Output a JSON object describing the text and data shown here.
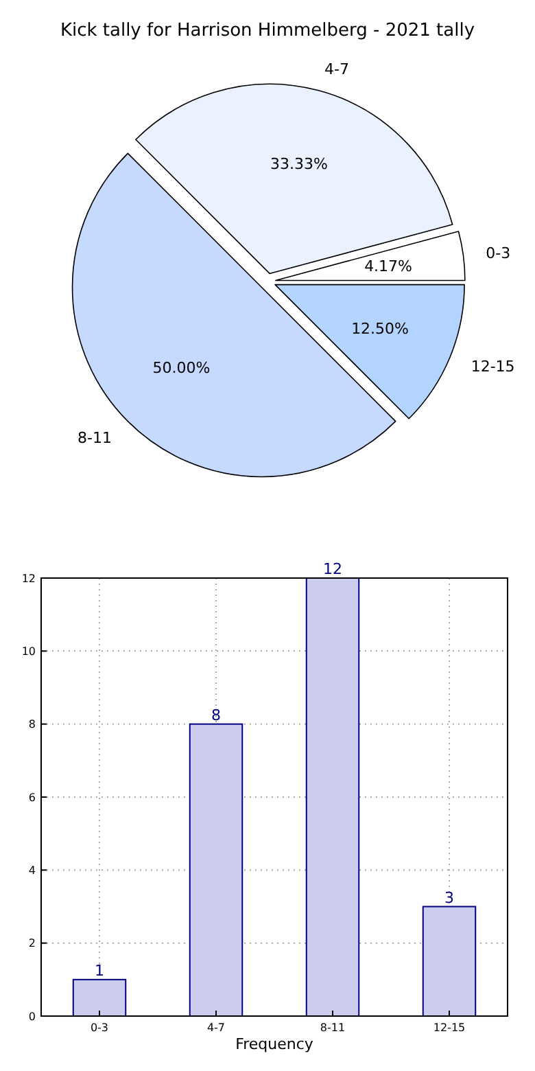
{
  "chart_data": [
    {
      "type": "pie",
      "title": "Kick tally for Harrison Himmelberg - 2021 tally",
      "categories": [
        "0-3",
        "4-7",
        "8-11",
        "12-15"
      ],
      "values": [
        4.17,
        33.33,
        50.0,
        12.5
      ],
      "value_labels": [
        "4.17%",
        "33.33%",
        "50.00%",
        "12.50%"
      ],
      "colors": [
        "#ffffff",
        "#eaf2ff",
        "#c6d9ff",
        "#b3d4ff"
      ]
    },
    {
      "type": "bar",
      "xlabel": "Frequency",
      "categories": [
        "0-3",
        "4-7",
        "8-11",
        "12-15"
      ],
      "values": [
        1,
        8,
        12,
        3
      ],
      "color": "#ccccee",
      "ylim": [
        0,
        12
      ],
      "yticks": [
        0,
        2,
        4,
        6,
        8,
        10,
        12
      ],
      "grid": true,
      "data_labels": true
    }
  ]
}
